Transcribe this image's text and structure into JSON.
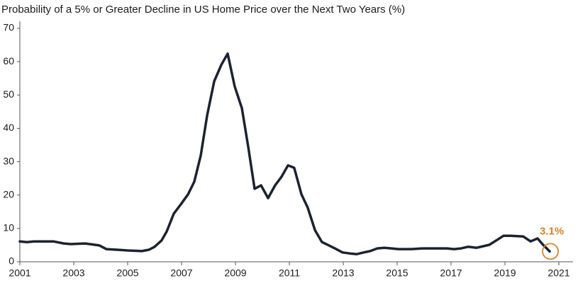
{
  "chart_data": {
    "type": "line",
    "title": "Probability of a 5% or Greater Decline in US Home Price over the Next Two Years (%)",
    "annotation": "3.1%",
    "annotation_color": "#d9822b",
    "xlim": [
      2001,
      2021
    ],
    "xticks": [
      2001,
      2003,
      2005,
      2007,
      2009,
      2011,
      2013,
      2015,
      2017,
      2019,
      2021
    ],
    "ylim": [
      0,
      70
    ],
    "yticks": [
      0,
      10,
      20,
      30,
      40,
      50,
      60,
      70
    ],
    "grid": false,
    "series": [
      {
        "color": "#1b2230",
        "x": [
          2001.0,
          2001.26,
          2001.53,
          2002.24,
          2002.63,
          2002.89,
          2003.42,
          2003.95,
          2004.21,
          2004.61,
          2005.0,
          2005.53,
          2005.79,
          2006.0,
          2006.26,
          2006.45,
          2006.71,
          2006.97,
          2007.24,
          2007.47,
          2007.71,
          2007.95,
          2008.21,
          2008.47,
          2008.71,
          2008.97,
          2009.24,
          2009.47,
          2009.71,
          2009.95,
          2010.21,
          2010.47,
          2010.71,
          2010.95,
          2011.18,
          2011.45,
          2011.68,
          2011.95,
          2012.21,
          2012.47,
          2012.74,
          2012.97,
          2013.24,
          2013.5,
          2013.76,
          2014.0,
          2014.26,
          2014.53,
          2014.79,
          2015.05,
          2015.53,
          2015.92,
          2016.84,
          2017.11,
          2017.37,
          2017.63,
          2017.95,
          2018.42,
          2018.68,
          2018.95,
          2019.21,
          2019.68,
          2019.95,
          2020.21,
          2020.39,
          2020.66
        ],
        "values": [
          6.1,
          5.9,
          6.1,
          6.1,
          5.5,
          5.3,
          5.5,
          4.9,
          3.8,
          3.6,
          3.4,
          3.2,
          3.6,
          4.5,
          6.4,
          9.1,
          14.4,
          17.2,
          20.2,
          24.0,
          31.8,
          43.9,
          54.1,
          59.0,
          62.4,
          52.6,
          46.0,
          34.6,
          21.9,
          22.9,
          19.1,
          22.9,
          25.5,
          28.9,
          28.2,
          20.2,
          16.3,
          9.5,
          5.9,
          4.9,
          3.8,
          2.8,
          2.5,
          2.3,
          2.8,
          3.2,
          4.0,
          4.2,
          4.0,
          3.8,
          3.8,
          4.0,
          4.0,
          3.8,
          4.0,
          4.5,
          4.2,
          5.1,
          6.4,
          7.8,
          7.8,
          7.6,
          6.1,
          7.0,
          5.3,
          3.1
        ]
      }
    ]
  }
}
